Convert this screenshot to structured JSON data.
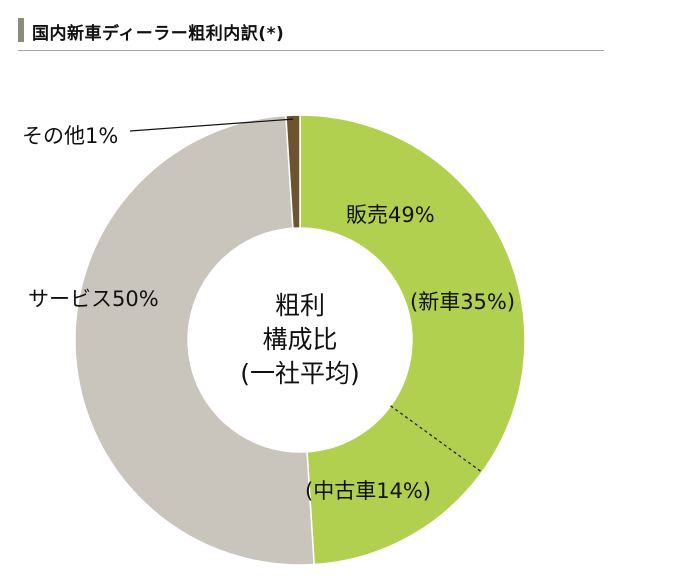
{
  "header": {
    "title": "国内新車ディーラー粗利内訳(*)"
  },
  "chart_data": {
    "type": "pie",
    "donut": true,
    "center_label": [
      "粗利",
      "構成比",
      "(一社平均)"
    ],
    "slices": [
      {
        "label": "販売49%",
        "value": 49,
        "color": "#b2d050"
      },
      {
        "label": "サービス50%",
        "value": 50,
        "color": "#c9c5bd"
      },
      {
        "label": "その他1%",
        "value": 1,
        "color": "#6e5330"
      }
    ],
    "sub_segments": [
      {
        "label": "(新車35%)",
        "value": 35
      },
      {
        "label": "(中古車14%)",
        "value": 14
      }
    ]
  }
}
